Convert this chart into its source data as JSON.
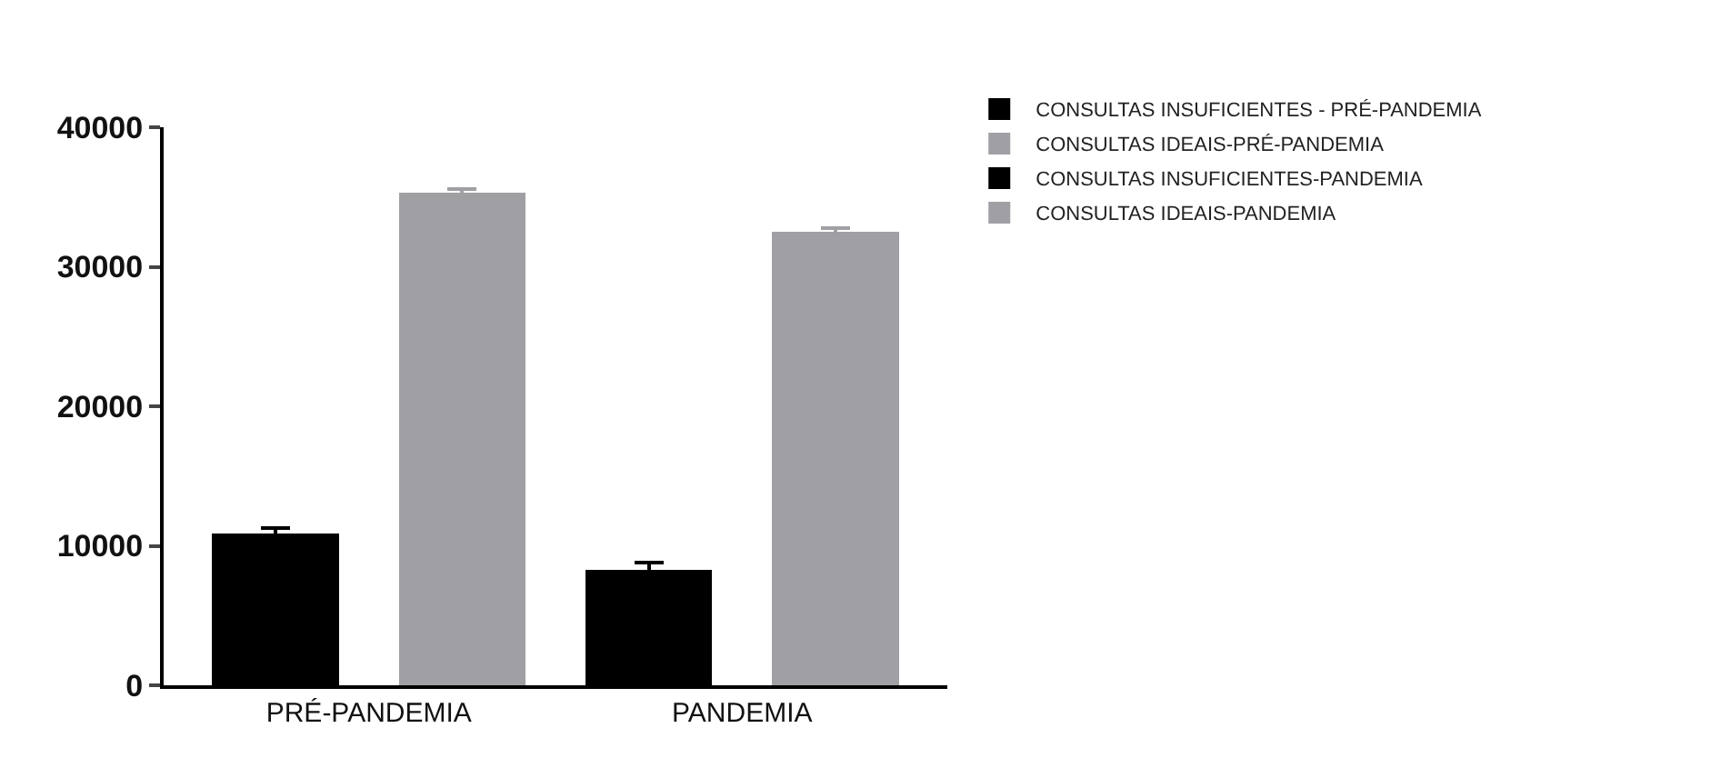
{
  "chart_data": {
    "type": "bar",
    "categories": [
      "PRÉ-PANDEMIA",
      "PANDEMIA"
    ],
    "series": [
      {
        "name": "CONSULTAS INSUFICIENTES - PRÉ-PANDEMIA",
        "color": "#000000",
        "values": [
          10900,
          null
        ],
        "errors": [
          400,
          null
        ]
      },
      {
        "name": "CONSULTAS IDEAIS-PRÉ-PANDEMIA",
        "color": "#a0a0a4",
        "values": [
          35300,
          null
        ],
        "errors": [
          300,
          null
        ]
      },
      {
        "name": "CONSULTAS INSUFICIENTES-PANDEMIA",
        "color": "#000000",
        "values": [
          null,
          8300
        ],
        "errors": [
          null,
          500
        ]
      },
      {
        "name": "CONSULTAS IDEAIS-PANDEMIA",
        "color": "#a0a0a4",
        "values": [
          null,
          32500
        ],
        "errors": [
          null,
          300
        ]
      }
    ],
    "ylim": [
      0,
      40000
    ],
    "yticks": [
      0,
      10000,
      20000,
      30000,
      40000
    ],
    "grid": false,
    "legend": "top right"
  }
}
